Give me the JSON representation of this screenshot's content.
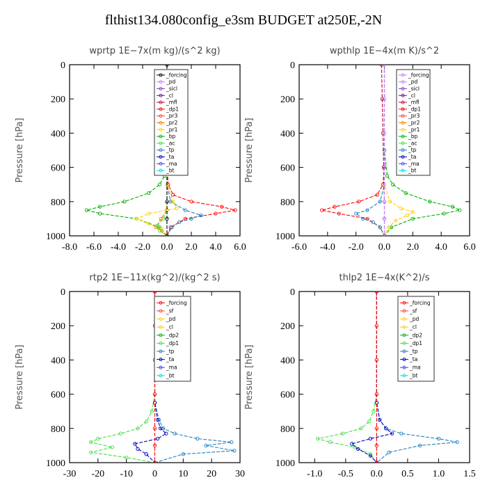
{
  "title": "flthist134.080config_e3sm  BUDGET at250E,-2N",
  "chart_data": [
    {
      "type": "line",
      "title": "wprtp   1E−7x(m kg)/(s^2 kg)",
      "ylabel": "Pressure [hPa]",
      "xlim": [
        -8.0,
        6.0
      ],
      "ylim": [
        1000,
        0
      ],
      "xticks": [
        "-8.0",
        "-6.0",
        "-4.0",
        "-2.0",
        "0.0",
        "2.0",
        "4.0",
        "6.0"
      ],
      "xtick_values": [
        -8,
        -6,
        -4,
        -2,
        0,
        2,
        4,
        6
      ],
      "yticks": [
        "0",
        "200",
        "400",
        "600",
        "800",
        "1000"
      ],
      "ytick_values": [
        0,
        200,
        400,
        600,
        800,
        1000
      ],
      "legend": [
        "_forcing",
        "_pd",
        "_sicl",
        "_cl",
        "_mfl",
        "_dp1",
        "_pr3",
        "_pr2",
        "_pr1",
        "_bp",
        "_ac",
        "_tp",
        "_ta",
        "_ma",
        "_bt"
      ],
      "legend_colors": [
        "#000000",
        "#c080ff",
        "#8040c0",
        "#800080",
        "#c00040",
        "#ff0000",
        "#ff4040",
        "#ff8000",
        "#ffd000",
        "#00b000",
        "#40e040",
        "#2080c0",
        "#0000c0",
        "#4040ff",
        "#00e0e0"
      ],
      "series": [
        {
          "name": "_bp",
          "color": "#00b000",
          "y": [
            0,
            500,
            650,
            700,
            750,
            800,
            830,
            850,
            870,
            900,
            950,
            1000
          ],
          "x": [
            0,
            0,
            -0.2,
            -0.6,
            -1.5,
            -3.5,
            -5.5,
            -6.6,
            -5.5,
            -2.5,
            -0.6,
            0
          ]
        },
        {
          "name": "_dp1",
          "color": "#ff0000",
          "y": [
            0,
            600,
            700,
            760,
            800,
            830,
            850,
            870,
            900,
            950,
            1000
          ],
          "x": [
            0,
            0,
            0.1,
            0.5,
            2.0,
            4.5,
            5.6,
            4.0,
            1.5,
            0.3,
            0
          ]
        },
        {
          "name": "_ta",
          "color": "#2080c0",
          "y": [
            0,
            700,
            800,
            850,
            880,
            900,
            920,
            950,
            1000
          ],
          "x": [
            0,
            0,
            0.3,
            1.5,
            2.8,
            2.0,
            1.0,
            0.4,
            0
          ]
        },
        {
          "name": "_pr2",
          "color": "#ffd000",
          "y": [
            0,
            700,
            800,
            840,
            870,
            900,
            930,
            960,
            1000
          ],
          "x": [
            0,
            0,
            0.5,
            0.8,
            -1.5,
            -2.5,
            -1.5,
            -0.4,
            0
          ]
        },
        {
          "name": "_ac",
          "color": "#40e040",
          "y": [
            0,
            850,
            900,
            940,
            970,
            1000
          ],
          "x": [
            0,
            0,
            -0.3,
            -0.8,
            -0.6,
            0
          ]
        },
        {
          "name": "_pr1",
          "color": "#ff8000",
          "y": [
            0,
            850,
            900,
            950,
            1000
          ],
          "x": [
            0,
            0,
            -0.5,
            -0.9,
            0
          ]
        },
        {
          "name": "_forcing",
          "color": "#000000",
          "y": [
            0,
            200,
            400,
            600,
            800,
            900,
            1000
          ],
          "x": [
            0,
            0,
            0,
            0,
            0,
            0,
            0
          ]
        }
      ]
    },
    {
      "type": "line",
      "title": "wpthlp   1E−4x(m K)/s^2",
      "ylabel": "Pressure [hPa]",
      "xlim": [
        -6.0,
        6.0
      ],
      "ylim": [
        1000,
        0
      ],
      "xticks": [
        "-6.0",
        "-4.0",
        "-2.0",
        "0.0",
        "2.0",
        "4.0",
        "6.0"
      ],
      "xtick_values": [
        -6,
        -4,
        -2,
        0,
        2,
        4,
        6
      ],
      "yticks": [
        "0",
        "200",
        "400",
        "600",
        "800",
        "1000"
      ],
      "ytick_values": [
        0,
        200,
        400,
        600,
        800,
        1000
      ],
      "legend": [
        "_forcing",
        "_pd",
        "_sicl",
        "_cl",
        "_mfl",
        "_dp1",
        "_pr3",
        "_pr2",
        "_pr1",
        "_bp",
        "_ac",
        "_tp",
        "_ta",
        "_ma",
        "_bt"
      ],
      "legend_colors": [
        "#c080ff",
        "#c080ff",
        "#8040c0",
        "#800080",
        "#c00040",
        "#ff0000",
        "#ff4040",
        "#ff8000",
        "#ffd000",
        "#00b000",
        "#40e040",
        "#2080c0",
        "#0000c0",
        "#4040ff",
        "#00e0e0"
      ],
      "series": [
        {
          "name": "_bp",
          "color": "#00b000",
          "y": [
            0,
            500,
            650,
            700,
            750,
            800,
            830,
            850,
            870,
            900,
            950,
            1000
          ],
          "x": [
            0,
            0,
            0.2,
            0.6,
            1.5,
            3.2,
            4.8,
            5.3,
            4.2,
            2.0,
            0.5,
            0
          ]
        },
        {
          "name": "_dp1",
          "color": "#ff0000",
          "y": [
            0,
            600,
            700,
            760,
            800,
            830,
            850,
            870,
            900,
            950,
            1000
          ],
          "x": [
            0,
            0,
            -0.1,
            -0.5,
            -1.8,
            -3.5,
            -4.4,
            -3.2,
            -1.2,
            -0.3,
            0
          ]
        },
        {
          "name": "_ta",
          "color": "#2080c0",
          "y": [
            0,
            700,
            800,
            850,
            870,
            900,
            920,
            950,
            1000
          ],
          "x": [
            0,
            0,
            -0.3,
            -1.2,
            -2.0,
            -1.5,
            -0.8,
            -0.3,
            0
          ]
        },
        {
          "name": "_pr2",
          "color": "#ffd000",
          "y": [
            0,
            700,
            800,
            840,
            860,
            880,
            910,
            950,
            1000
          ],
          "x": [
            0,
            0,
            0.4,
            1.2,
            2.0,
            1.6,
            0.8,
            0.3,
            0
          ]
        },
        {
          "name": "_mfl",
          "color": "#c00040",
          "y": [
            0,
            200,
            400,
            600,
            800,
            900,
            1000
          ],
          "x": [
            -0.2,
            -0.15,
            -0.1,
            -0.05,
            0,
            0,
            0
          ]
        },
        {
          "name": "_pd",
          "color": "#c080ff",
          "y": [
            0,
            200,
            400,
            600,
            800,
            900,
            1000
          ],
          "x": [
            0,
            0,
            0,
            0,
            0,
            0,
            0
          ]
        }
      ]
    },
    {
      "type": "line",
      "title": "rtp2   1E−11x(kg^2)/(kg^2 s)",
      "ylabel": "Pressure [hPa]",
      "xlim": [
        -30,
        30
      ],
      "ylim": [
        1000,
        0
      ],
      "xticks": [
        "-30",
        "-20",
        "-10",
        "0",
        "10",
        "20",
        "30"
      ],
      "xtick_values": [
        -30,
        -20,
        -10,
        0,
        10,
        20,
        30
      ],
      "yticks": [
        "0",
        "200",
        "400",
        "600",
        "800",
        "1000"
      ],
      "ytick_values": [
        0,
        200,
        400,
        600,
        800,
        1000
      ],
      "legend": [
        "_forcing",
        "_sf",
        "_pd",
        "_cl",
        "_dp2",
        "_dp1",
        "_tp",
        "_ta",
        "_ma",
        "_bt"
      ],
      "legend_colors": [
        "#ff0000",
        "#ff4040",
        "#ffd000",
        "#ffd000",
        "#00b000",
        "#40e040",
        "#2080c0",
        "#0000c0",
        "#4040ff",
        "#00e0e0"
      ],
      "series": [
        {
          "name": "_dp1",
          "color": "#40e040",
          "y": [
            0,
            600,
            700,
            760,
            800,
            830,
            860,
            880,
            910,
            940,
            970,
            1000
          ],
          "x": [
            0,
            0,
            -1.0,
            -3.0,
            -6.0,
            -12.0,
            -20.0,
            -22.5,
            -15.0,
            -22.5,
            -10.0,
            0
          ]
        },
        {
          "name": "_ma",
          "color": "#2080c0",
          "y": [
            0,
            650,
            750,
            800,
            830,
            860,
            880,
            900,
            930,
            950,
            1000
          ],
          "x": [
            0,
            0,
            1.5,
            3.0,
            7.0,
            15.0,
            27.0,
            18.0,
            28.0,
            10.0,
            0
          ]
        },
        {
          "name": "_ta",
          "color": "#0000c0",
          "y": [
            0,
            650,
            750,
            800,
            830,
            860,
            890,
            920,
            950,
            1000
          ],
          "x": [
            0,
            0,
            1.0,
            2.0,
            4.0,
            1.0,
            -7.0,
            -6.0,
            -3.0,
            0
          ]
        },
        {
          "name": "_forcing",
          "color": "#ff0000",
          "y": [
            0,
            200,
            400,
            600,
            800,
            900,
            1000
          ],
          "x": [
            0,
            0,
            0,
            0,
            0,
            0,
            0
          ]
        }
      ]
    },
    {
      "type": "line",
      "title": "thlp2   1E−4x(K^2)/s",
      "ylabel": "Pressure [hPa]",
      "xlim": [
        -1.25,
        1.5
      ],
      "ylim": [
        1000,
        0
      ],
      "xticks": [
        "-1.0",
        "-0.5",
        "0.0",
        "0.5",
        "1.0",
        "1.5"
      ],
      "xtick_values": [
        -1.0,
        -0.5,
        0.0,
        0.5,
        1.0,
        1.5
      ],
      "yticks": [
        "0",
        "200",
        "400",
        "600",
        "800",
        "1000"
      ],
      "ytick_values": [
        0,
        200,
        400,
        600,
        800,
        1000
      ],
      "legend": [
        "_forcing",
        "_sf",
        "_pd",
        "_cl",
        "_dp2",
        "_dp1",
        "_tp",
        "_ta",
        "_ma",
        "_bt"
      ],
      "legend_colors": [
        "#ff0000",
        "#ff4040",
        "#ffd000",
        "#ffd000",
        "#00b000",
        "#40e040",
        "#2080c0",
        "#0000c0",
        "#4040ff",
        "#00e0e0"
      ],
      "series": [
        {
          "name": "_dp1",
          "color": "#40e040",
          "y": [
            0,
            600,
            700,
            760,
            800,
            830,
            860,
            880,
            910,
            950,
            1000
          ],
          "x": [
            0,
            0,
            -0.05,
            -0.12,
            -0.25,
            -0.55,
            -0.95,
            -0.75,
            -0.35,
            -0.1,
            0
          ]
        },
        {
          "name": "_ma",
          "color": "#2080c0",
          "y": [
            0,
            650,
            750,
            800,
            830,
            860,
            880,
            900,
            940,
            1000
          ],
          "x": [
            0,
            0,
            0.05,
            0.15,
            0.4,
            1.0,
            1.3,
            0.7,
            0.2,
            0
          ]
        },
        {
          "name": "_ta",
          "color": "#0000c0",
          "y": [
            0,
            650,
            750,
            800,
            830,
            860,
            890,
            920,
            960,
            1000
          ],
          "x": [
            0,
            0,
            0.05,
            0.15,
            0.25,
            -0.1,
            -0.4,
            -0.3,
            -0.1,
            0
          ]
        },
        {
          "name": "_forcing",
          "color": "#ff0000",
          "y": [
            0,
            200,
            400,
            600,
            800,
            900,
            1000
          ],
          "x": [
            0,
            0,
            0,
            0,
            0,
            0,
            0
          ]
        }
      ]
    }
  ]
}
